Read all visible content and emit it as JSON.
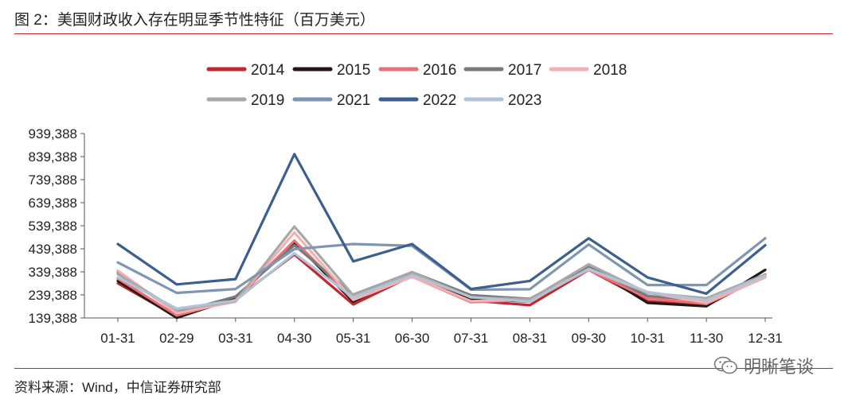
{
  "figure_title": "图 2：美国财政收入存在明显季节性特征（百万美元）",
  "source_note": "资料来源：Wind，中信证券研究部",
  "watermark": {
    "text": "明晰笔谈",
    "icon": "wechat-icon"
  },
  "chart_data": {
    "type": "line",
    "title": "",
    "xlabel": "",
    "ylabel": "",
    "categories": [
      "01-31",
      "02-29",
      "03-31",
      "04-30",
      "05-31",
      "06-30",
      "07-31",
      "08-31",
      "09-30",
      "10-31",
      "11-30",
      "12-31"
    ],
    "y_ticks": [
      "939,388",
      "839,388",
      "739,388",
      "639,388",
      "539,388",
      "439,388",
      "339,388",
      "239,388",
      "139,388"
    ],
    "ylim": [
      139388,
      939388
    ],
    "grid": false,
    "legend_position": "top",
    "series": [
      {
        "name": "2014",
        "color": "#c4262e",
        "values": [
          290000,
          145000,
          220000,
          415000,
          198000,
          322000,
          215000,
          195000,
          348000,
          212000,
          192000,
          328000
        ]
      },
      {
        "name": "2015",
        "color": "#231815",
        "values": [
          300000,
          140000,
          225000,
          468000,
          210000,
          335000,
          222000,
          210000,
          362000,
          205000,
          190000,
          348000
        ]
      },
      {
        "name": "2016",
        "color": "#e87079",
        "values": [
          310000,
          150000,
          218000,
          475000,
          218000,
          318000,
          208000,
          218000,
          348000,
          225000,
          200000,
          318000
        ]
      },
      {
        "name": "2017",
        "color": "#7a7a7a",
        "values": [
          338000,
          162000,
          232000,
          455000,
          240000,
          338000,
          238000,
          222000,
          362000,
          235000,
          214000,
          328000
        ]
      },
      {
        "name": "2018",
        "color": "#f4b0b2",
        "values": [
          345000,
          160000,
          210000,
          510000,
          218000,
          318000,
          212000,
          220000,
          350000,
          250000,
          205000,
          315000
        ]
      },
      {
        "name": "2019",
        "color": "#a8a8a8",
        "values": [
          330000,
          175000,
          212000,
          536000,
          238000,
          338000,
          228000,
          220000,
          372000,
          248000,
          225000,
          328000
        ]
      },
      {
        "name": "2021",
        "color": "#7f96b2",
        "values": [
          380000,
          248000,
          265000,
          438000,
          460000,
          452000,
          262000,
          264000,
          458000,
          282000,
          282000,
          485000
        ]
      },
      {
        "name": "2022",
        "color": "#3c5f8d",
        "values": [
          460000,
          285000,
          308000,
          850000,
          385000,
          460000,
          265000,
          300000,
          485000,
          315000,
          245000,
          455000
        ]
      },
      {
        "name": "2023",
        "color": "#b3c3d6",
        "values": [
          315000,
          180000,
          215000,
          420000,
          228000,
          326000,
          230000,
          210000,
          352000,
          252000,
          216000,
          322000
        ]
      }
    ]
  }
}
